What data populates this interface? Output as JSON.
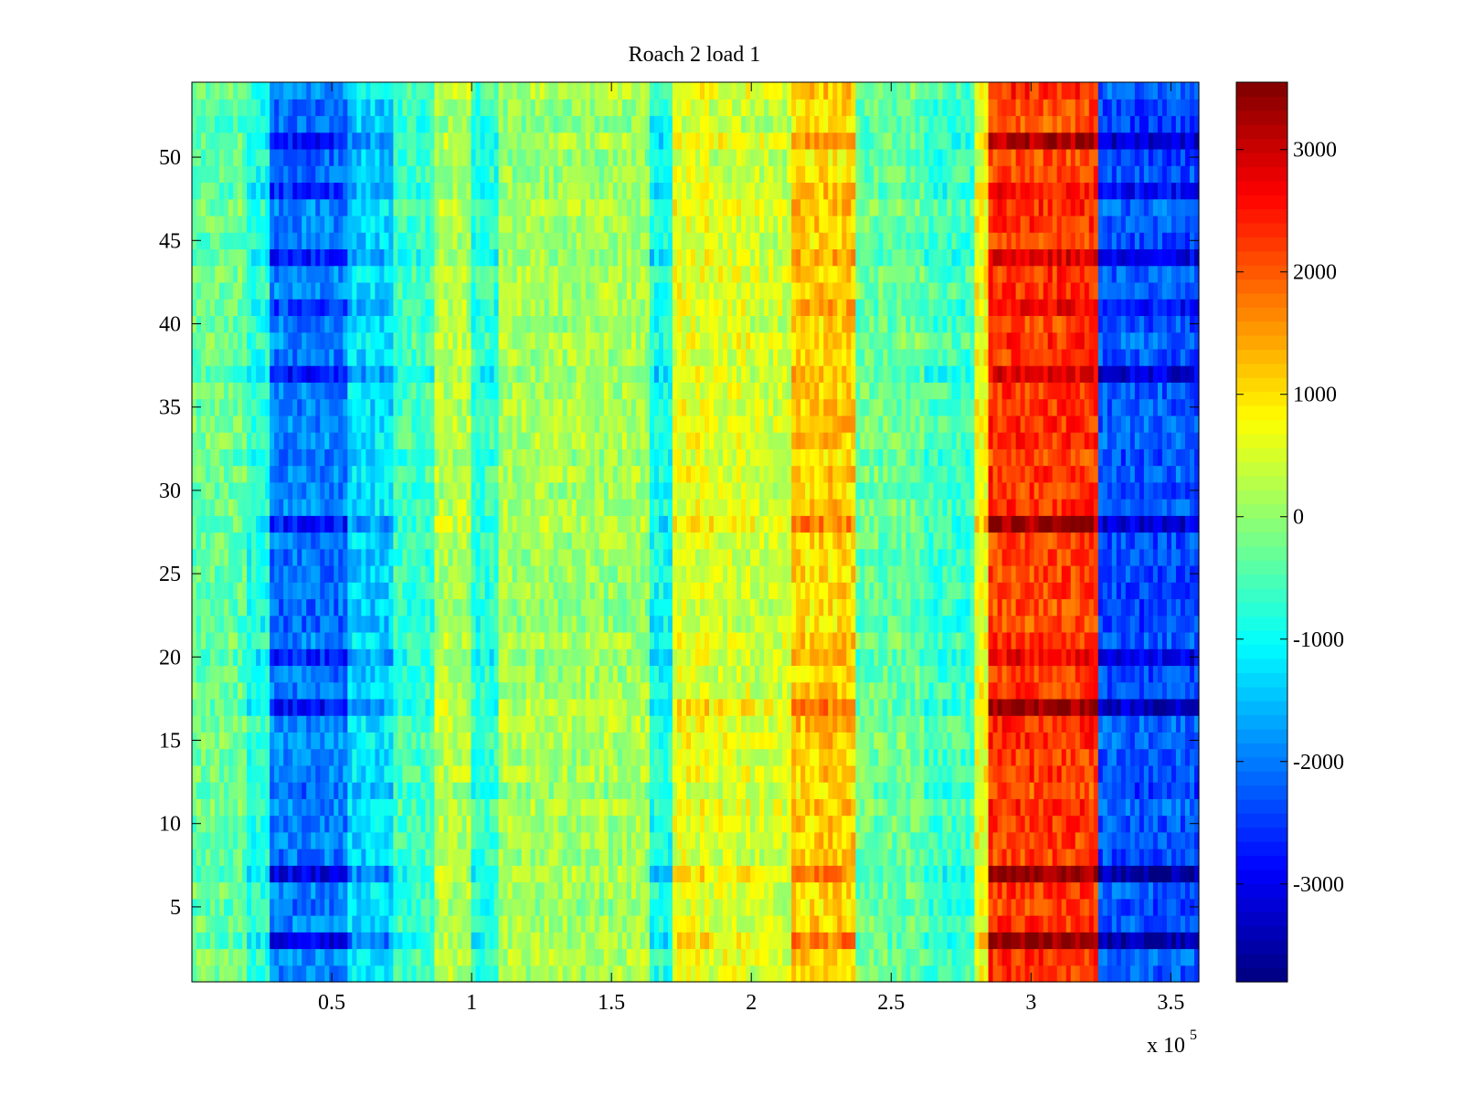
{
  "chart_data": {
    "type": "heatmap",
    "title": "Roach 2 load 1",
    "xlabel": "",
    "ylabel": "",
    "x_multiplier_label": "x 10",
    "x_multiplier_exponent": "5",
    "xlim": [
      0,
      360000
    ],
    "ylim": [
      0.5,
      54.5
    ],
    "rows": 54,
    "x_ticks": [
      {
        "value": 50000,
        "label": "0.5"
      },
      {
        "value": 100000,
        "label": "1"
      },
      {
        "value": 150000,
        "label": "1.5"
      },
      {
        "value": 200000,
        "label": "2"
      },
      {
        "value": 250000,
        "label": "2.5"
      },
      {
        "value": 300000,
        "label": "3"
      },
      {
        "value": 350000,
        "label": "3.5"
      }
    ],
    "y_ticks": [
      {
        "value": 5,
        "label": "5"
      },
      {
        "value": 10,
        "label": "10"
      },
      {
        "value": 15,
        "label": "15"
      },
      {
        "value": 20,
        "label": "20"
      },
      {
        "value": 25,
        "label": "25"
      },
      {
        "value": 30,
        "label": "30"
      },
      {
        "value": 35,
        "label": "35"
      },
      {
        "value": 40,
        "label": "40"
      },
      {
        "value": 45,
        "label": "45"
      },
      {
        "value": 50,
        "label": "50"
      }
    ],
    "colormap": "jet",
    "clim": [
      -3800,
      3550
    ],
    "colorbar_ticks": [
      {
        "value": 3000,
        "label": "3000"
      },
      {
        "value": 2000,
        "label": "2000"
      },
      {
        "value": 1000,
        "label": "1000"
      },
      {
        "value": 0,
        "label": "0"
      },
      {
        "value": -1000,
        "label": "-1000"
      },
      {
        "value": -2000,
        "label": "-2000"
      },
      {
        "value": -3000,
        "label": "-3000"
      }
    ],
    "column_bands": [
      {
        "x": [
          0,
          20000
        ],
        "value": -300
      },
      {
        "x": [
          20000,
          28000
        ],
        "value": -800
      },
      {
        "x": [
          28000,
          55000
        ],
        "value": -2000
      },
      {
        "x": [
          55000,
          72000
        ],
        "value": -1300
      },
      {
        "x": [
          72000,
          86000
        ],
        "value": -600
      },
      {
        "x": [
          86000,
          100000
        ],
        "value": 200
      },
      {
        "x": [
          100000,
          110000
        ],
        "value": -700
      },
      {
        "x": [
          110000,
          163000
        ],
        "value": 100
      },
      {
        "x": [
          163000,
          172000
        ],
        "value": -900
      },
      {
        "x": [
          172000,
          185000
        ],
        "value": 600
      },
      {
        "x": [
          185000,
          200000
        ],
        "value": 500
      },
      {
        "x": [
          200000,
          214000
        ],
        "value": 400
      },
      {
        "x": [
          214000,
          237000
        ],
        "value": 1100
      },
      {
        "x": [
          237000,
          262000
        ],
        "value": -300
      },
      {
        "x": [
          262000,
          280000
        ],
        "value": -600
      },
      {
        "x": [
          280000,
          284000
        ],
        "value": 700
      },
      {
        "x": [
          284000,
          324000
        ],
        "value": 2200
      },
      {
        "x": [
          324000,
          360000
        ],
        "value": -2300
      }
    ],
    "strong_rows": [
      {
        "y": 3,
        "effect": 1.0
      },
      {
        "y": 7,
        "effect": 1.0
      },
      {
        "y": 17,
        "effect": 0.9
      },
      {
        "y": 20,
        "effect": 0.5
      },
      {
        "y": 28,
        "effect": 0.8
      },
      {
        "y": 37,
        "effect": 0.6
      },
      {
        "y": 41,
        "effect": 0.4
      },
      {
        "y": 44,
        "effect": 0.6
      },
      {
        "y": 48,
        "effect": 0.4
      },
      {
        "y": 51,
        "effect": 0.8
      }
    ]
  }
}
